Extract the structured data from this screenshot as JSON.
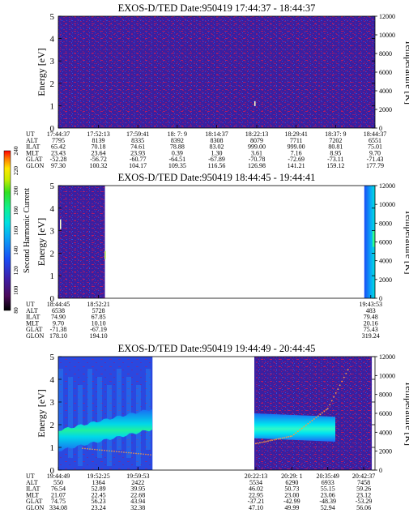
{
  "panels": [
    {
      "title": "EXOS-D/TED   Date:950419   17:44:37 - 18:44:37",
      "ylabel_left": "Energy [eV]",
      "ylabel_right": "Temperature [K]",
      "yticks_left": [
        "0",
        "1",
        "2",
        "3",
        "4",
        "5"
      ],
      "yticks_right": [
        "0",
        "2000",
        "4000",
        "6000",
        "8000",
        "10000",
        "12000"
      ],
      "data_coverage": "full",
      "rows": [
        [
          "UT",
          "17:44:37",
          "17:52:13",
          "17:59:41",
          "18: 7: 9",
          "18:14:37",
          "18:22:13",
          "18:29:41",
          "18:37: 9",
          "18:44:37"
        ],
        [
          "ALT",
          "7795",
          "8139",
          "8335",
          "8392",
          "8308",
          "8079",
          "7711",
          "7202",
          "6551"
        ],
        [
          "ILAT",
          "65.42",
          "70.18",
          "74.61",
          "78.88",
          "83.02",
          "999.00",
          "999.00",
          "80.81",
          "75.01"
        ],
        [
          "MLT",
          "23.43",
          "23.64",
          "23.93",
          "0.39",
          "1.30",
          "3.61",
          "7.16",
          "8.95",
          "9.70"
        ],
        [
          "GLAT",
          "-52.28",
          "-56.72",
          "-60.77",
          "-64.51",
          "-67.89",
          "-70.78",
          "-72.69",
          "-73.11",
          "-71.43"
        ],
        [
          "GLON",
          "97.30",
          "100.32",
          "104.17",
          "109.35",
          "116.56",
          "126.98",
          "141.21",
          "159.12",
          "177.79"
        ]
      ]
    },
    {
      "title": "EXOS-D/TED   Date:950419   18:44:45 - 19:44:41",
      "ylabel_left": "Energy [eV]",
      "ylabel_right": "Temperature [K]",
      "yticks_left": [
        "0",
        "1",
        "2",
        "3",
        "4",
        "5"
      ],
      "yticks_right": [
        "0",
        "2000",
        "4000",
        "6000",
        "8000",
        "10000",
        "12000"
      ],
      "rows": [
        [
          "UT",
          "18:44:45",
          "18:52:21",
          "19:43:53"
        ],
        [
          "ALT",
          "6538",
          "5728",
          "483"
        ],
        [
          "ILAT",
          "74.90",
          "67.85",
          "79.48"
        ],
        [
          "MLT",
          "9.70",
          "10.10",
          "20.16"
        ],
        [
          "GLAT",
          "-71.38",
          "-67.19",
          "75.43"
        ],
        [
          "GLON",
          "178.10",
          "194.10",
          "319.24"
        ]
      ]
    },
    {
      "title": "EXOS-D/TED   Date:950419   19:44:49 - 20:44:45",
      "ylabel_left": "Energy [eV]",
      "ylabel_right": "Temperature [K]",
      "yticks_left": [
        "0",
        "1",
        "2",
        "3",
        "4",
        "5"
      ],
      "yticks_right": [
        "0",
        "2000",
        "4000",
        "6000",
        "8000",
        "10000",
        "12000"
      ],
      "rows": [
        [
          "UT",
          "19:44:49",
          "19:52:25",
          "19:59:53",
          "20:22:13",
          "20:29: 1",
          "20:35:49",
          "20:42:37"
        ],
        [
          "ALT",
          "550",
          "1364",
          "2422",
          "5534",
          "6290",
          "6933",
          "7458"
        ],
        [
          "ILAT",
          "76.54",
          "52.89",
          "39.95",
          "46.02",
          "50.73",
          "55.15",
          "59.26"
        ],
        [
          "MLT",
          "21.07",
          "22.45",
          "22.68",
          "22.95",
          "23.00",
          "23.06",
          "23.12"
        ],
        [
          "GLAT",
          "74.75",
          "56.23",
          "43.94",
          "-37.21",
          "-42.99",
          "-48.39",
          "-53.29"
        ],
        [
          "GLON",
          "334.08",
          "23.24",
          "32.38",
          "47.10",
          "49.99",
          "52.94",
          "56.06"
        ]
      ]
    }
  ],
  "colorbar": {
    "label": "Second Harmonic Current",
    "ticks": [
      "80",
      "100",
      "120",
      "140",
      "160",
      "180",
      "200",
      "220",
      "240"
    ]
  },
  "colors": {
    "background_dark": "#3a1fa0",
    "noise": "#a0196b",
    "cyan": "#00e0f0",
    "green": "#30ff80",
    "temperature_trace": "#ff9a3c"
  },
  "chart_data": [
    {
      "type": "heatmap",
      "title": "EXOS-D/TED   Date:950419   17:44:37 - 18:44:37",
      "xlabel": "UT",
      "ylabel": "Energy [eV]",
      "y2label": "Temperature [K]",
      "ylim": [
        0,
        5
      ],
      "y2lim": [
        0,
        12000
      ],
      "x_time_range": [
        "17:44:37",
        "18:44:37"
      ],
      "data_coverage": [
        [
          "17:44:37",
          "18:44:37"
        ]
      ],
      "intensity_level": "low (noise only, ~100)"
    },
    {
      "type": "heatmap",
      "title": "EXOS-D/TED   Date:950419   18:44:45 - 19:44:41",
      "xlabel": "UT",
      "ylabel": "Energy [eV]",
      "y2label": "Temperature [K]",
      "ylim": [
        0,
        5
      ],
      "y2lim": [
        0,
        12000
      ],
      "x_time_range": [
        "18:44:45",
        "19:44:41"
      ],
      "data_coverage": [
        [
          "18:44:45",
          "18:52:21"
        ],
        [
          "19:43:53",
          "19:44:41"
        ]
      ],
      "intensity_level": "low (noise only, ~100)"
    },
    {
      "type": "heatmap",
      "title": "EXOS-D/TED   Date:950419   19:44:49 - 20:44:45",
      "xlabel": "UT",
      "ylabel": "Energy [eV]",
      "y2label": "Temperature [K]",
      "ylim": [
        0,
        5
      ],
      "y2lim": [
        0,
        12000
      ],
      "x_time_range": [
        "19:44:49",
        "20:44:45"
      ],
      "data_coverage": [
        [
          "19:44:49",
          "20:01:30"
        ],
        [
          "20:22:13",
          "20:32:00"
        ],
        [
          "20:32:00",
          "20:42:37"
        ]
      ],
      "band_center_ev": [
        {
          "ut": "19:44:49",
          "ev": 1.4
        },
        {
          "ut": "19:52:25",
          "ev": 1.8
        },
        {
          "ut": "19:59:53",
          "ev": 2.3
        },
        {
          "ut": "20:22:13",
          "ev": 1.9
        },
        {
          "ut": "20:29: 1",
          "ev": 1.8
        }
      ],
      "temperature_trace_k": [
        {
          "ut": "19:52:25",
          "k": 2500
        },
        {
          "ut": "19:59:53",
          "k": 1800
        },
        {
          "ut": "20:22:13",
          "k": 2800
        },
        {
          "ut": "20:29: 1",
          "k": 3600
        },
        {
          "ut": "20:35:49",
          "k": 6500
        },
        {
          "ut": "20:40:00",
          "k": 11000
        }
      ]
    }
  ]
}
